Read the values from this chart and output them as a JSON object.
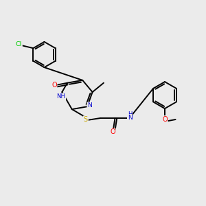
{
  "background_color": "#ebebeb",
  "bond_color": "#000000",
  "atom_colors": {
    "N": "#0000cd",
    "O": "#ff0000",
    "S": "#ccaa00",
    "Cl": "#00cc00",
    "C": "#000000"
  },
  "figsize": [
    3.0,
    3.0
  ],
  "dpi": 100
}
